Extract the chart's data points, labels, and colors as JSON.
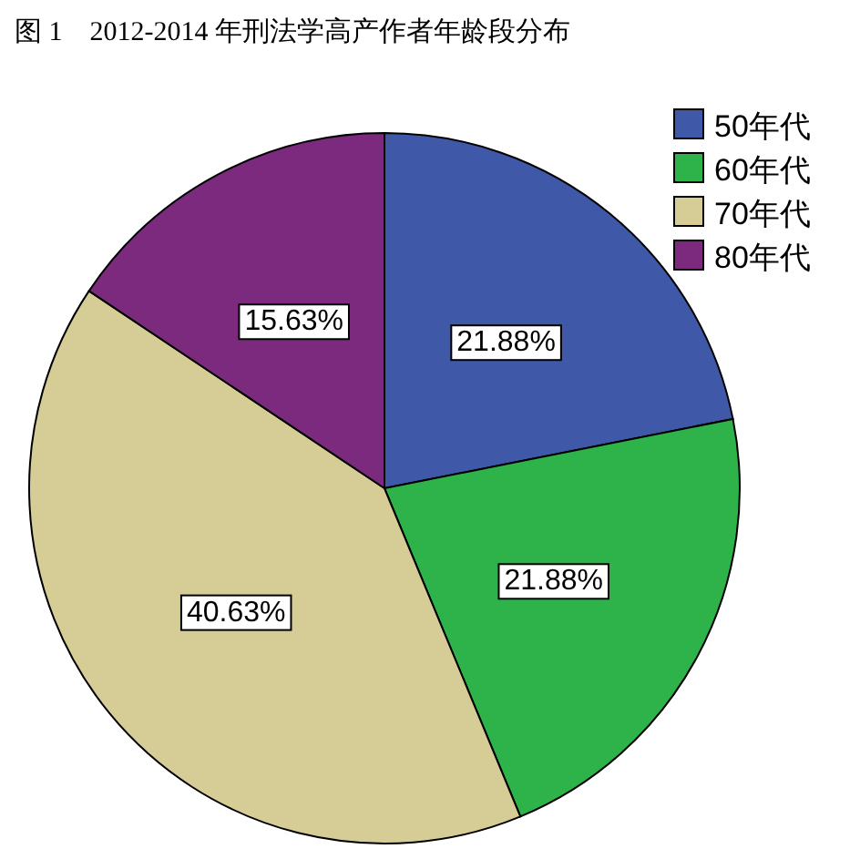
{
  "chart_data": {
    "type": "pie",
    "title": "图 1　2012-2014 年刑法学高产作者年龄段分布",
    "categories": [
      "50年代",
      "60年代",
      "70年代",
      "80年代"
    ],
    "values": [
      21.88,
      21.88,
      40.63,
      15.63
    ],
    "value_labels": [
      "21.88%",
      "21.88%",
      "40.63%",
      "15.63%"
    ],
    "colors": [
      "#3f59a8",
      "#2db34a",
      "#d5cc96",
      "#7b2a7d"
    ],
    "legend": "top right"
  }
}
